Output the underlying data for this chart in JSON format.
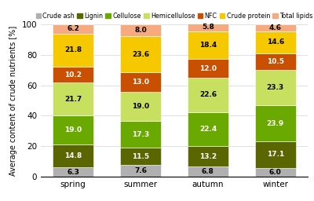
{
  "seasons": [
    "spring",
    "summer",
    "autumn",
    "winter"
  ],
  "components": [
    "Crude ash",
    "Lignin",
    "Cellulose",
    "Hemicellulose",
    "NFC",
    "Crude protein",
    "Total lipids"
  ],
  "colors": [
    "#b0b0b0",
    "#5a6600",
    "#6aaa00",
    "#c8e060",
    "#c85000",
    "#f5c800",
    "#f5aa80"
  ],
  "values": {
    "Crude ash": [
      6.3,
      7.6,
      6.8,
      6.0
    ],
    "Lignin": [
      14.8,
      11.5,
      13.2,
      17.1
    ],
    "Cellulose": [
      19.0,
      17.3,
      22.4,
      23.9
    ],
    "Hemicellulose": [
      21.7,
      19.0,
      22.6,
      23.3
    ],
    "NFC": [
      10.2,
      13.0,
      12.0,
      10.5
    ],
    "Crude protein": [
      21.8,
      23.6,
      18.4,
      14.6
    ],
    "Total lipids": [
      6.2,
      8.0,
      5.8,
      4.6
    ]
  },
  "text_colors": {
    "Crude ash": "black",
    "Lignin": "white",
    "Cellulose": "white",
    "Hemicellulose": "black",
    "NFC": "white",
    "Crude protein": "black",
    "Total lipids": "black"
  },
  "ylabel": "Average content of crude nutrients [%]",
  "ylim": [
    0,
    100
  ],
  "yticks": [
    0,
    20,
    40,
    60,
    80,
    100
  ],
  "label_fontsize": 6.5,
  "bar_width": 0.6,
  "legend_fontsize": 5.8,
  "axis_label_fontsize": 7,
  "tick_fontsize": 7.5
}
